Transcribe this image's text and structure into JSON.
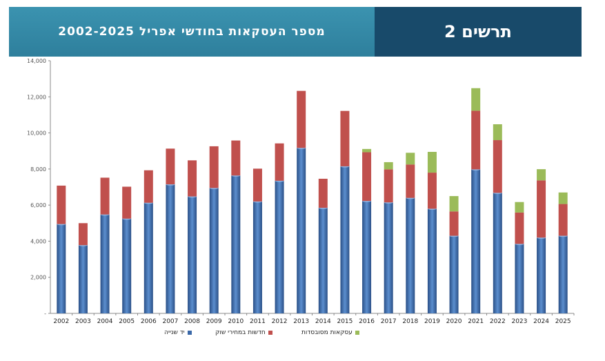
{
  "header": {
    "title": "מספר העסקאות בחודשי אפריל 2002-2025",
    "figure_label": "תרשים 2"
  },
  "colors": {
    "second_hand": "#3a68a8",
    "new_market": "#c0504d",
    "subsidized": "#9bbb59"
  },
  "chart_data": {
    "type": "bar",
    "stacked": true,
    "title": "מספר העסקאות בחודשי אפריל 2002-2025",
    "xlabel": "",
    "ylabel": "",
    "ylim": [
      0,
      14000
    ],
    "yticks": [
      "-",
      "2,000",
      "4,000",
      "6,000",
      "8,000",
      "10,000",
      "12,000",
      "14,000"
    ],
    "categories": [
      "2002",
      "2003",
      "2004",
      "2005",
      "2006",
      "2007",
      "2008",
      "2009",
      "2010",
      "2011",
      "2012",
      "2013",
      "2014",
      "2015",
      "2016",
      "2017",
      "2018",
      "2019",
      "2020",
      "2021",
      "2022",
      "2023",
      "2024",
      "2025"
    ],
    "series": [
      {
        "name": "יד שנייה",
        "values": [
          4950,
          3780,
          5480,
          5250,
          6130,
          7150,
          6480,
          6950,
          7640,
          6200,
          7350,
          9170,
          5850,
          8150,
          6230,
          6150,
          6400,
          5800,
          4300,
          7980,
          6680,
          3850,
          4200,
          4300
        ]
      },
      {
        "name": "חדשות במחירי שוק",
        "values": [
          2130,
          1220,
          2040,
          1770,
          1800,
          1980,
          2000,
          2310,
          1940,
          1820,
          2070,
          3160,
          1610,
          3070,
          2700,
          1830,
          1850,
          2000,
          1350,
          3250,
          2920,
          1740,
          3170,
          1760
        ]
      },
      {
        "name": "עסקאות מסובסדות",
        "values": [
          0,
          0,
          0,
          0,
          0,
          0,
          0,
          0,
          0,
          0,
          0,
          0,
          0,
          0,
          180,
          400,
          650,
          1150,
          850,
          1250,
          880,
          580,
          620,
          640
        ]
      }
    ],
    "legend": [
      "יד שנייה",
      "חדשות במחירי שוק",
      "עסקאות מסובסדות"
    ],
    "legend_position": "bottom",
    "grid": false
  }
}
